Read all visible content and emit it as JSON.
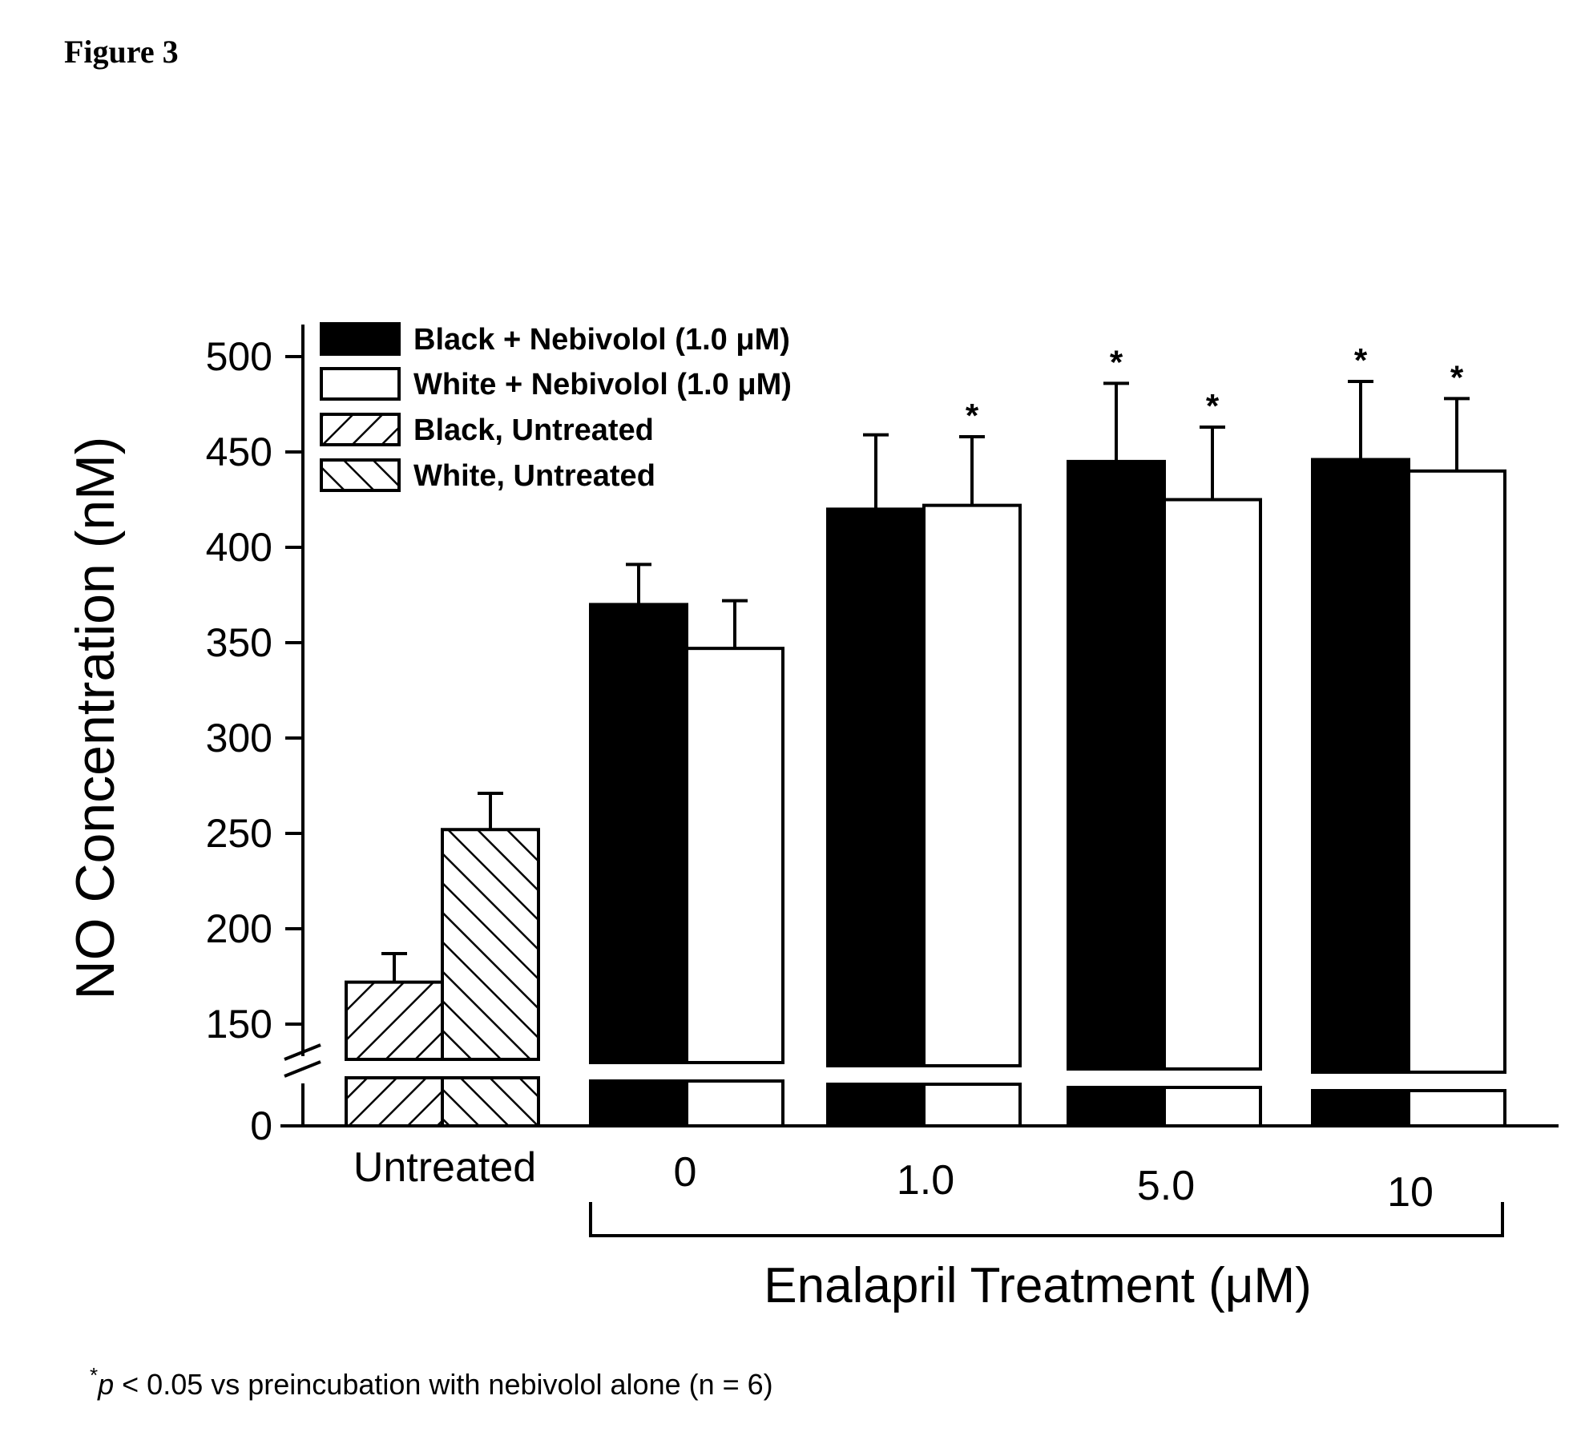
{
  "figure_label": "Figure 3",
  "footnote": {
    "star": "*",
    "p": "p",
    "rest": " < 0.05 vs preincubation with nebivolol alone (n = 6)"
  },
  "chart_data": {
    "type": "bar",
    "title": "",
    "ylabel": "NO Concentration (nM)",
    "xlabel": "Enalapril Treatment (μM)",
    "ylim": [
      0,
      500
    ],
    "axis_break": true,
    "yticks": [
      0,
      150,
      200,
      250,
      300,
      350,
      400,
      450,
      500
    ],
    "legend_position": "top-left",
    "groups": [
      {
        "label": "Untreated",
        "bars": [
          {
            "series": "Black, Untreated",
            "value": 172,
            "error": 15,
            "sig": false
          },
          {
            "series": "White, Untreated",
            "value": 252,
            "error": 19,
            "sig": false
          }
        ]
      },
      {
        "label": "0",
        "bars": [
          {
            "series": "Black + Nebivolol (1.0 μM)",
            "value": 370,
            "error": 21,
            "sig": false
          },
          {
            "series": "White + Nebivolol (1.0 μM)",
            "value": 347,
            "error": 25,
            "sig": false
          }
        ]
      },
      {
        "label": "1.0",
        "bars": [
          {
            "series": "Black + Nebivolol (1.0 μM)",
            "value": 420,
            "error": 39,
            "sig": false
          },
          {
            "series": "White + Nebivolol (1.0 μM)",
            "value": 422,
            "error": 36,
            "sig": true
          }
        ]
      },
      {
        "label": "5.0",
        "bars": [
          {
            "series": "Black + Nebivolol (1.0 μM)",
            "value": 445,
            "error": 41,
            "sig": true
          },
          {
            "series": "White + Nebivolol (1.0 μM)",
            "value": 425,
            "error": 38,
            "sig": true
          }
        ]
      },
      {
        "label": "10",
        "bars": [
          {
            "series": "Black + Nebivolol (1.0 μM)",
            "value": 446,
            "error": 41,
            "sig": true
          },
          {
            "series": "White + Nebivolol (1.0 μM)",
            "value": 440,
            "error": 38,
            "sig": true
          }
        ]
      }
    ],
    "series": [
      {
        "name": "Black + Nebivolol (1.0 μM)",
        "style": "solid-black"
      },
      {
        "name": "White + Nebivolol (1.0 μM)",
        "style": "solid-white"
      },
      {
        "name": "Black, Untreated",
        "style": "hatch-forward"
      },
      {
        "name": "White, Untreated",
        "style": "hatch-back"
      }
    ],
    "sig_marker": "*",
    "colors": {
      "ink": "#000000",
      "paper": "#ffffff"
    }
  }
}
